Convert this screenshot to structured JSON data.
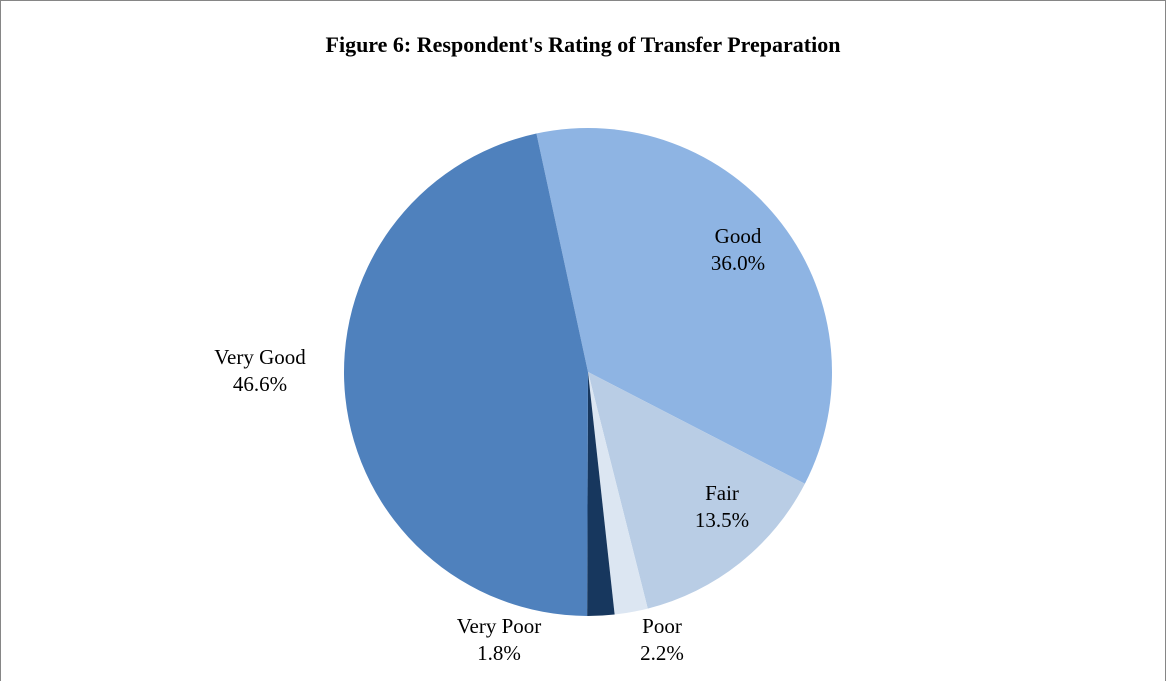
{
  "chart_data": {
    "type": "pie",
    "title": "Figure 6: Respondent's Rating of Transfer Preparation",
    "categories": [
      "Good",
      "Fair",
      "Poor",
      "Very Poor",
      "Very Good"
    ],
    "values": [
      36.0,
      13.5,
      2.2,
      1.8,
      46.6
    ],
    "value_labels": [
      "36.0%",
      "13.5%",
      "2.2%",
      "1.8%",
      "46.6%"
    ],
    "colors": [
      "#8eb4e3",
      "#b9cde5",
      "#dce6f2",
      "#17375e",
      "#4f81bd"
    ]
  }
}
